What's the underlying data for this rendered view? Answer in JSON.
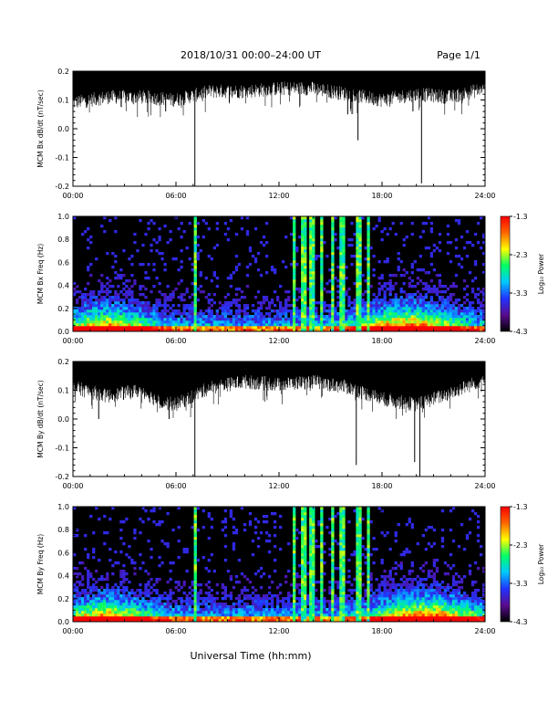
{
  "header": {
    "date_range": "2018/10/31   00:00–24:00 UT",
    "page": "Page 1/1"
  },
  "xlabel": "Universal Time (hh:mm)",
  "colorbar": {
    "label": "Log₁₀ Power",
    "ticks": [
      "-1.3",
      "-2.3",
      "-3.3",
      "-4.3"
    ],
    "range": [
      -4.3,
      -1.3
    ],
    "colors": [
      "#000000",
      "#5a0b8f",
      "#2233ff",
      "#00c8ff",
      "#00ff66",
      "#ffff00",
      "#ff6600",
      "#ff0000"
    ]
  },
  "chart_data": [
    {
      "type": "line",
      "ylabel": "MCM Bx dB/dt (nT/sec)",
      "x_ticks": [
        "00:00",
        "06:00",
        "12:00",
        "18:00",
        "24:00"
      ],
      "y_ticks": [
        "0.2",
        "0.1",
        "0.0",
        "-0.1",
        "-0.2"
      ],
      "xlim_hours": [
        0,
        24
      ],
      "ylim": [
        -0.2,
        0.2
      ],
      "series": [
        {
          "color": "#000000",
          "upper_envelope": 0.2,
          "typical_low_hours": [
            0,
            2,
            4,
            6,
            8,
            10,
            12,
            14,
            16,
            18,
            20,
            22,
            24
          ],
          "typical_low_values": [
            0.08,
            0.1,
            0.1,
            0.09,
            0.12,
            0.12,
            0.13,
            0.13,
            0.11,
            0.09,
            0.11,
            0.1,
            0.13
          ],
          "spikes": [
            {
              "hour": 7.1,
              "value": -0.2
            },
            {
              "hour": 16.6,
              "value": -0.04
            },
            {
              "hour": 20.3,
              "value": -0.19
            },
            {
              "hour": 16.0,
              "value": 0.05
            },
            {
              "hour": 19.8,
              "value": 0.06
            },
            {
              "hour": 5.4,
              "value": 0.06
            }
          ]
        }
      ]
    },
    {
      "type": "heatmap",
      "ylabel": "MCM Bx Freq (Hz)",
      "x_ticks": [
        "00:00",
        "06:00",
        "12:00",
        "18:00",
        "24:00"
      ],
      "y_ticks": [
        "1.0",
        "0.8",
        "0.6",
        "0.4",
        "0.2",
        "0.0"
      ],
      "xlim_hours": [
        0,
        24
      ],
      "ylim": [
        0,
        1.0
      ],
      "bright_columns_hours": [
        7.1,
        12.9,
        13.4,
        13.9,
        14.5,
        15.1,
        15.7,
        16.6,
        17.2
      ],
      "noise_peak_hours": [
        2.0,
        19.5
      ]
    },
    {
      "type": "line",
      "ylabel": "MCM By dB/dt (nT/sec)",
      "x_ticks": [
        "00:00",
        "06:00",
        "12:00",
        "18:00",
        "24:00"
      ],
      "y_ticks": [
        "0.2",
        "0.1",
        "0.0",
        "-0.1",
        "-0.2"
      ],
      "xlim_hours": [
        0,
        24
      ],
      "ylim": [
        -0.2,
        0.2
      ],
      "series": [
        {
          "color": "#000000",
          "upper_envelope": 0.2,
          "typical_low_hours": [
            0,
            2,
            4,
            5,
            6,
            8,
            10,
            12,
            14,
            16,
            18,
            20,
            22,
            24
          ],
          "typical_low_values": [
            0.1,
            0.07,
            0.09,
            0.05,
            0.04,
            0.1,
            0.12,
            0.11,
            0.12,
            0.1,
            0.06,
            0.04,
            0.08,
            0.13
          ],
          "spikes": [
            {
              "hour": 7.1,
              "value": -0.2
            },
            {
              "hour": 16.5,
              "value": -0.16
            },
            {
              "hour": 19.9,
              "value": -0.15
            },
            {
              "hour": 20.2,
              "value": -0.2
            },
            {
              "hour": 1.5,
              "value": 0.0
            },
            {
              "hour": 5.6,
              "value": 0.0
            }
          ]
        }
      ]
    },
    {
      "type": "heatmap",
      "ylabel": "MCM By Freq (Hz)",
      "x_ticks": [
        "00:00",
        "06:00",
        "12:00",
        "18:00",
        "24:00"
      ],
      "y_ticks": [
        "1.0",
        "0.8",
        "0.6",
        "0.4",
        "0.2",
        "0.0"
      ],
      "xlim_hours": [
        0,
        24
      ],
      "ylim": [
        0,
        1.0
      ],
      "bright_columns_hours": [
        7.1,
        12.9,
        13.4,
        13.9,
        14.5,
        15.1,
        15.7,
        16.6,
        17.2
      ],
      "noise_peak_hours": [
        2.0,
        20.5
      ]
    }
  ]
}
